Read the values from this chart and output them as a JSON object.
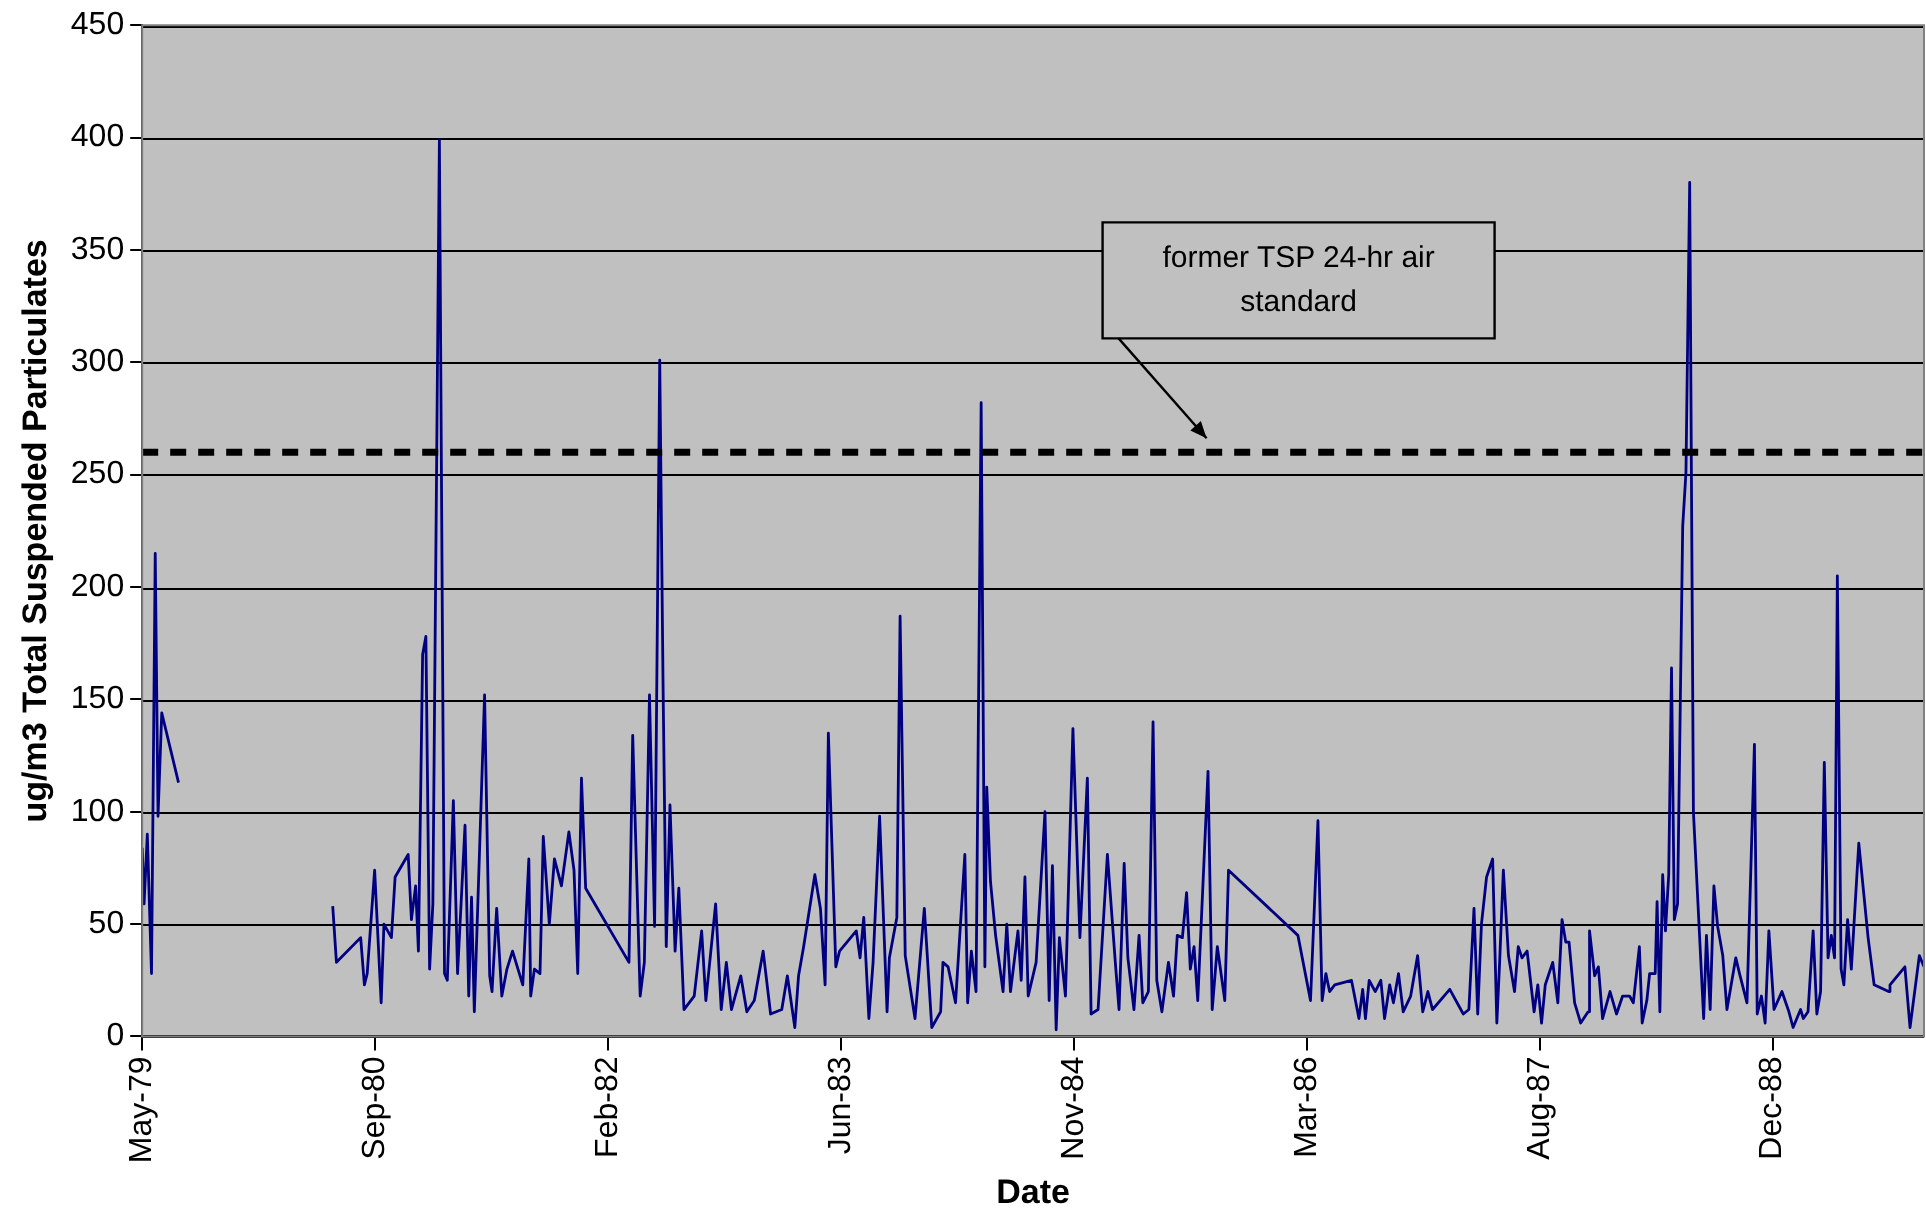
{
  "chart_data": {
    "type": "line",
    "xlabel": "Date",
    "ylabel": "ug/m3 Total Suspended Particulates",
    "xlim": [
      "1979-05-15",
      "1989-11-03"
    ],
    "xticks": [
      {
        "value": "1979-05-15",
        "label": "May-79"
      },
      {
        "value": "1980-09-26",
        "label": "Sep-80"
      },
      {
        "value": "1982-02-08",
        "label": "Feb-82"
      },
      {
        "value": "1983-06-23",
        "label": "Jun-83"
      },
      {
        "value": "1984-11-04",
        "label": "Nov-84"
      },
      {
        "value": "1986-03-19",
        "label": "Mar-86"
      },
      {
        "value": "1987-08-01",
        "label": "Aug-87"
      },
      {
        "value": "1988-12-13",
        "label": "Dec-88"
      }
    ],
    "ylim": [
      0,
      450
    ],
    "yticks": [
      0,
      50,
      100,
      150,
      200,
      250,
      300,
      350,
      400,
      450
    ],
    "grid": "y",
    "legend": false,
    "marker": "none",
    "ref_lines": [
      {
        "axis": "y",
        "value": 260,
        "label": "former TSP 24-hr air standard",
        "color": "#000000",
        "line_style": "dashed"
      }
    ],
    "series": [
      {
        "color": "#000080",
        "x": [
          "1979-05-15",
          "1979-05-19",
          "1979-05-26",
          "1979-06-04",
          "1979-06-12",
          "1979-06-18",
          "1979-06-26",
          "1979-08-01"
        ],
        "values": [
          84,
          59,
          90,
          28,
          215,
          98,
          144,
          113
        ]
      },
      {
        "color": "#000080",
        "x": [
          "1980-06-27",
          "1980-07-05",
          "1980-08-26",
          "1980-09-03",
          "1980-09-09",
          "1980-09-25",
          "1980-10-09",
          "1980-10-15",
          "1980-10-31",
          "1980-11-08",
          "1980-12-06",
          "1980-12-13",
          "1980-12-22",
          "1980-12-28",
          "1981-01-06",
          "1981-01-13",
          "1981-01-21",
          "1981-01-28",
          "1981-02-11",
          "1981-02-22",
          "1981-02-28",
          "1981-03-13",
          "1981-03-22",
          "1981-04-07",
          "1981-04-15",
          "1981-04-21",
          "1981-04-27",
          "1981-05-19",
          "1981-05-30",
          "1981-06-04",
          "1981-06-14",
          "1981-06-25",
          "1981-07-06",
          "1981-07-18",
          "1981-08-09",
          "1981-08-22",
          "1981-08-26",
          "1981-09-03",
          "1981-09-15",
          "1981-09-22",
          "1981-10-05",
          "1981-10-16",
          "1981-10-31",
          "1981-11-16",
          "1981-11-27",
          "1981-12-05",
          "1981-12-13",
          "1981-12-22",
          "1982-03-25",
          "1982-04-02",
          "1982-04-18",
          "1982-04-27",
          "1982-05-08",
          "1982-05-19",
          "1982-05-30",
          "1982-06-06",
          "1982-06-13",
          "1982-06-21",
          "1982-07-02",
          "1982-07-10",
          "1982-07-21",
          "1982-08-12",
          "1982-08-28",
          "1982-09-06",
          "1982-09-27",
          "1982-10-09",
          "1982-10-20",
          "1982-10-31",
          "1982-11-20",
          "1982-12-03",
          "1982-12-19",
          "1983-01-07",
          "1983-01-23",
          "1983-02-16",
          "1983-02-28",
          "1983-03-16",
          "1983-03-24",
          "1983-04-04",
          "1983-04-28",
          "1983-05-10",
          "1983-05-20",
          "1983-05-27",
          "1983-06-12",
          "1983-06-20",
          "1983-07-26",
          "1983-08-03",
          "1983-08-11",
          "1983-08-22",
          "1983-08-31",
          "1983-09-14",
          "1983-09-30",
          "1983-10-05",
          "1983-10-21",
          "1983-10-28",
          "1983-11-08",
          "1983-11-29",
          "1983-12-19",
          "1984-01-04",
          "1984-01-23",
          "1984-01-28",
          "1984-02-08",
          "1984-02-24",
          "1984-03-15",
          "1984-03-21",
          "1984-03-29",
          "1984-04-08",
          "1984-04-19",
          "1984-04-27",
          "1984-05-01",
          "1984-05-09",
          "1984-05-20",
          "1984-06-05",
          "1984-06-13",
          "1984-06-21",
          "1984-07-07",
          "1984-07-14",
          "1984-07-22",
          "1984-07-29",
          "1984-08-15",
          "1984-09-03",
          "1984-09-12",
          "1984-09-19",
          "1984-09-27",
          "1984-10-04",
          "1984-10-17",
          "1984-11-02",
          "1984-11-17",
          "1984-12-03",
          "1984-12-11",
          "1984-12-26",
          "1985-01-15",
          "1985-02-01",
          "1985-02-09",
          "1985-02-20",
          "1985-02-28",
          "1985-03-13",
          "1985-03-24",
          "1985-04-01",
          "1985-04-13",
          "1985-04-23",
          "1985-05-01",
          "1985-05-12",
          "1985-05-26",
          "1985-06-06",
          "1985-06-14",
          "1985-06-25",
          "1985-07-04",
          "1985-07-12",
          "1985-07-20",
          "1985-07-28",
          "1985-08-19",
          "1985-08-28",
          "1985-09-08",
          "1985-09-24",
          "1985-10-02",
          "1986-02-28",
          "1986-03-27",
          "1986-04-12",
          "1986-04-21",
          "1986-04-29",
          "1986-05-07",
          "1986-05-18",
          "1986-06-23",
          "1986-07-09",
          "1986-07-17",
          "1986-07-23",
          "1986-07-31",
          "1986-08-13",
          "1986-08-25",
          "1986-09-02",
          "1986-09-13",
          "1986-09-21",
          "1986-10-02",
          "1986-10-12",
          "1986-10-28",
          "1986-11-12",
          "1986-11-23",
          "1986-12-04",
          "1986-12-14",
          "1987-01-20",
          "1987-02-18",
          "1987-03-02",
          "1987-03-13",
          "1987-03-21",
          "1987-03-29",
          "1987-04-09",
          "1987-04-22",
          "1987-05-01",
          "1987-05-07",
          "1987-05-15",
          "1987-05-26",
          "1987-06-08",
          "1987-06-16",
          "1987-06-24",
          "1987-07-05",
          "1987-07-20",
          "1987-07-28",
          "1987-08-05",
          "1987-08-13",
          "1987-08-29",
          "1987-09-09",
          "1987-09-18",
          "1987-09-26",
          "1987-10-03",
          "1987-10-15",
          "1987-10-28",
          "1987-11-13",
          "1987-11-16",
          "1987-11-27",
          "1987-12-05",
          "1987-12-14",
          "1987-12-30",
          "1988-01-13",
          "1988-01-26",
          "1988-02-10",
          "1988-02-18",
          "1988-03-02",
          "1988-03-08",
          "1988-03-18",
          "1988-03-24",
          "1988-04-05",
          "1988-04-09",
          "1988-04-15",
          "1988-04-21",
          "1988-04-27",
          "1988-05-04",
          "1988-05-10",
          "1988-05-16",
          "1988-05-23",
          "1988-06-03",
          "1988-06-10",
          "1988-06-18",
          "1988-06-26",
          "1988-07-18",
          "1988-07-24",
          "1988-08-01",
          "1988-08-09",
          "1988-08-17",
          "1988-08-28",
          "1988-09-06",
          "1988-09-25",
          "1988-10-03",
          "1988-10-19",
          "1988-11-04",
          "1988-11-10",
          "1988-11-19",
          "1988-11-27",
          "1988-12-05",
          "1988-12-16",
          "1989-01-02",
          "1989-01-17",
          "1989-01-26",
          "1989-02-11",
          "1989-02-17",
          "1989-02-27",
          "1989-03-10",
          "1989-03-18",
          "1989-03-26",
          "1989-04-03",
          "1989-04-11",
          "1989-04-18",
          "1989-04-25",
          "1989-05-01",
          "1989-05-09",
          "1989-05-15",
          "1989-05-23",
          "1989-05-31",
          "1989-06-16",
          "1989-07-06",
          "1989-07-19",
          "1989-08-19",
          "1989-08-22",
          "1989-09-23",
          "1989-10-04",
          "1989-10-24",
          "1989-11-03"
        ],
        "values": [
          58,
          33,
          44,
          23,
          28,
          74,
          15,
          50,
          44,
          71,
          81,
          52,
          67,
          38,
          170,
          178,
          30,
          59,
          399,
          28,
          25,
          105,
          28,
          94,
          18,
          62,
          11,
          152,
          27,
          20,
          57,
          18,
          30,
          38,
          23,
          79,
          18,
          30,
          28,
          89,
          50,
          79,
          67,
          91,
          74,
          28,
          115,
          66,
          33,
          134,
          18,
          33,
          152,
          49,
          301,
          159,
          40,
          103,
          38,
          66,
          12,
          18,
          47,
          16,
          59,
          12,
          33,
          12,
          27,
          11,
          16,
          38,
          10,
          12,
          27,
          4,
          27,
          40,
          72,
          57,
          23,
          135,
          31,
          38,
          47,
          35,
          53,
          8,
          33,
          98,
          11,
          35,
          53,
          187,
          36,
          8,
          57,
          4,
          11,
          33,
          31,
          15,
          81,
          15,
          38,
          20,
          282,
          31,
          111,
          69,
          45,
          20,
          50,
          20,
          47,
          25,
          71,
          18,
          33,
          100,
          16,
          76,
          3,
          44,
          18,
          137,
          44,
          115,
          10,
          12,
          81,
          33,
          12,
          77,
          35,
          12,
          45,
          15,
          20,
          140,
          25,
          11,
          33,
          18,
          45,
          44,
          64,
          30,
          40,
          16,
          118,
          12,
          40,
          16,
          74,
          45,
          16,
          96,
          16,
          28,
          20,
          23,
          25,
          8,
          21,
          8,
          25,
          20,
          25,
          8,
          23,
          15,
          28,
          11,
          18,
          36,
          11,
          20,
          12,
          21,
          10,
          12,
          57,
          10,
          50,
          71,
          79,
          6,
          33,
          74,
          36,
          20,
          40,
          35,
          38,
          11,
          23,
          6,
          23,
          33,
          15,
          52,
          42,
          42,
          15,
          6,
          11,
          47,
          27,
          31,
          8,
          20,
          10,
          18,
          18,
          15,
          40,
          6,
          16,
          28,
          28,
          60,
          11,
          72,
          47,
          72,
          164,
          52,
          59,
          227,
          251,
          380,
          100,
          8,
          45,
          12,
          67,
          49,
          36,
          12,
          35,
          28,
          15,
          130,
          10,
          18,
          6,
          47,
          12,
          20,
          11,
          4,
          12,
          8,
          11,
          47,
          10,
          20,
          122,
          35,
          45,
          35,
          205,
          30,
          23,
          52,
          30,
          86,
          44,
          23,
          20,
          23,
          31,
          4,
          36,
          31
        ]
      }
    ]
  }
}
